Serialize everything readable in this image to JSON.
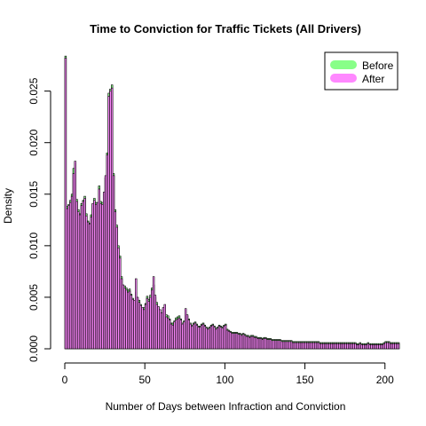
{
  "chart_data": {
    "type": "bar",
    "title": "Time to Conviction for Traffic Tickets (All Drivers)",
    "xlabel": "Number of Days between Infraction and Conviction",
    "ylabel": "Density",
    "xlim": [
      0,
      209
    ],
    "ylim": [
      0,
      0.0285
    ],
    "x_ticks": [
      0,
      50,
      100,
      150,
      200
    ],
    "y_ticks": [
      0.0,
      0.005,
      0.01,
      0.015,
      0.02,
      0.025
    ],
    "y_tick_labels": [
      "0.000",
      "0.005",
      "0.010",
      "0.015",
      "0.020",
      "0.025"
    ],
    "grid": false,
    "legend_position": "top-right",
    "colors": {
      "before": "#88ff88",
      "after": "#ff88ff",
      "outline": "#000000"
    },
    "series": [
      {
        "name": "Before",
        "color": "#88ff88",
        "x": [
          0,
          1,
          2,
          3,
          4,
          5,
          6,
          7,
          8,
          9,
          10,
          11,
          12,
          13,
          14,
          15,
          16,
          17,
          18,
          19,
          20,
          21,
          22,
          23,
          24,
          25,
          26,
          27,
          28,
          29,
          30,
          31,
          32,
          33,
          34,
          35,
          36,
          37,
          38,
          39,
          40,
          41,
          42,
          43,
          44,
          45,
          46,
          47,
          48,
          49,
          50,
          51,
          52,
          53,
          54,
          55,
          56,
          57,
          58,
          59,
          60,
          61,
          62,
          63,
          64,
          65,
          66,
          67,
          68,
          69,
          70,
          71,
          72,
          73,
          74,
          75,
          76,
          77,
          78,
          79,
          80,
          81,
          82,
          83,
          84,
          85,
          86,
          87,
          88,
          89,
          90,
          91,
          92,
          93,
          94,
          95,
          96,
          97,
          98,
          99,
          100,
          101,
          102,
          103,
          104,
          105,
          106,
          107,
          108,
          109,
          110,
          111,
          112,
          113,
          114,
          115,
          116,
          117,
          118,
          119,
          120,
          121,
          122,
          123,
          124,
          125,
          126,
          127,
          128,
          129,
          130,
          131,
          132,
          133,
          134,
          135,
          136,
          137,
          138,
          139,
          140,
          141,
          142,
          143,
          144,
          145,
          146,
          147,
          148,
          149,
          150,
          151,
          152,
          153,
          154,
          155,
          156,
          157,
          158,
          159,
          160,
          161,
          162,
          163,
          164,
          165,
          166,
          167,
          168,
          169,
          170,
          171,
          172,
          173,
          174,
          175,
          176,
          177,
          178,
          179,
          180,
          181,
          182,
          183,
          184,
          185,
          186,
          187,
          188,
          189,
          190,
          191,
          192,
          193,
          194,
          195,
          196,
          197,
          198,
          199,
          200,
          201,
          202,
          203,
          204,
          205,
          206,
          207,
          208
        ],
        "values": [
          0.0284,
          0.0138,
          0.014,
          0.0144,
          0.015,
          0.0175,
          0.018,
          0.0145,
          0.0135,
          0.0131,
          0.0141,
          0.0144,
          0.0148,
          0.0131,
          0.0124,
          0.0122,
          0.013,
          0.014,
          0.0146,
          0.0142,
          0.014,
          0.0158,
          0.0143,
          0.0142,
          0.015,
          0.0166,
          0.019,
          0.0248,
          0.0252,
          0.0256,
          0.017,
          0.0135,
          0.012,
          0.01,
          0.009,
          0.007,
          0.006,
          0.0061,
          0.0059,
          0.0057,
          0.0058,
          0.0053,
          0.0049,
          0.0045,
          0.0055,
          0.0048,
          0.0047,
          0.0043,
          0.0039,
          0.004,
          0.0044,
          0.0051,
          0.0048,
          0.0052,
          0.0059,
          0.0062,
          0.005,
          0.0045,
          0.004,
          0.0036,
          0.0034,
          0.0038,
          0.0041,
          0.0033,
          0.0032,
          0.0029,
          0.0025,
          0.0025,
          0.0027,
          0.003,
          0.0031,
          0.0032,
          0.0029,
          0.0025,
          0.0027,
          0.0031,
          0.0032,
          0.0029,
          0.0025,
          0.0023,
          0.0025,
          0.0026,
          0.0024,
          0.0022,
          0.0022,
          0.0024,
          0.0025,
          0.0023,
          0.0021,
          0.002,
          0.0021,
          0.0023,
          0.0024,
          0.0022,
          0.002,
          0.0021,
          0.0023,
          0.0022,
          0.0021,
          0.0023,
          0.0024,
          0.0019,
          0.0018,
          0.0017,
          0.0016,
          0.0016,
          0.0016,
          0.0016,
          0.0015,
          0.0015,
          0.0014,
          0.0015,
          0.0014,
          0.0013,
          0.0013,
          0.0012,
          0.0013,
          0.0013,
          0.0012,
          0.0012,
          0.0011,
          0.0011,
          0.0011,
          0.001,
          0.0011,
          0.0011,
          0.001,
          0.001,
          0.001,
          0.0009,
          0.0009,
          0.0009,
          0.0009,
          0.0009,
          0.0009,
          0.0008,
          0.0008,
          0.0008,
          0.0008,
          0.0008,
          0.0008,
          0.0008,
          0.0007,
          0.0007,
          0.0007,
          0.0007,
          0.0007,
          0.0007,
          0.0007,
          0.0007,
          0.0007,
          0.0007,
          0.0007,
          0.0007,
          0.0007,
          0.0007,
          0.0007,
          0.0007,
          0.0007,
          0.0006,
          0.0006,
          0.0006,
          0.0006,
          0.0006,
          0.0006,
          0.0006,
          0.0006,
          0.0006,
          0.0006,
          0.0006,
          0.0006,
          0.0006,
          0.0006,
          0.0006,
          0.0006,
          0.0006,
          0.0006,
          0.0006,
          0.0006,
          0.0006,
          0.0006,
          0.0006,
          0.0005,
          0.0005,
          0.0006,
          0.0005,
          0.0005,
          0.0005,
          0.0005,
          0.0006,
          0.0005,
          0.0005,
          0.0005,
          0.0005,
          0.0005,
          0.0005,
          0.0005,
          0.0005,
          0.0005,
          0.0006,
          0.0007,
          0.0007,
          0.0007,
          0.0006,
          0.0006,
          0.0006,
          0.0006,
          0.0006,
          0.0006
        ]
      },
      {
        "name": "After",
        "color": "#ff88ff",
        "x": [
          0,
          1,
          2,
          3,
          4,
          5,
          6,
          7,
          8,
          9,
          10,
          11,
          12,
          13,
          14,
          15,
          16,
          17,
          18,
          19,
          20,
          21,
          22,
          23,
          24,
          25,
          26,
          27,
          28,
          29,
          30,
          31,
          32,
          33,
          34,
          35,
          36,
          37,
          38,
          39,
          40,
          41,
          42,
          43,
          44,
          45,
          46,
          47,
          48,
          49,
          50,
          51,
          52,
          53,
          54,
          55,
          56,
          57,
          58,
          59,
          60,
          61,
          62,
          63,
          64,
          65,
          66,
          67,
          68,
          69,
          70,
          71,
          72,
          73,
          74,
          75,
          76,
          77,
          78,
          79,
          80,
          81,
          82,
          83,
          84,
          85,
          86,
          87,
          88,
          89,
          90,
          91,
          92,
          93,
          94,
          95,
          96,
          97,
          98,
          99,
          100,
          101,
          102,
          103,
          104,
          105,
          106,
          107,
          108,
          109,
          110,
          111,
          112,
          113,
          114,
          115,
          116,
          117,
          118,
          119,
          120,
          121,
          122,
          123,
          124,
          125,
          126,
          127,
          128,
          129,
          130,
          131,
          132,
          133,
          134,
          135,
          136,
          137,
          138,
          139,
          140,
          141,
          142,
          143,
          144,
          145,
          146,
          147,
          148,
          149,
          150,
          151,
          152,
          153,
          154,
          155,
          156,
          157,
          158,
          159,
          160,
          161,
          162,
          163,
          164,
          165,
          166,
          167,
          168,
          169,
          170,
          171,
          172,
          173,
          174,
          175,
          176,
          177,
          178,
          179,
          180,
          181,
          182,
          183,
          184,
          185,
          186,
          187,
          188,
          189,
          190,
          191,
          192,
          193,
          194,
          195,
          196,
          197,
          198,
          199,
          200,
          201,
          202,
          203,
          204,
          205,
          206,
          207,
          208
        ],
        "values": [
          0.0282,
          0.0136,
          0.0139,
          0.0142,
          0.0148,
          0.017,
          0.0182,
          0.0143,
          0.0133,
          0.013,
          0.0139,
          0.0143,
          0.0146,
          0.0129,
          0.0123,
          0.0121,
          0.0128,
          0.0141,
          0.0144,
          0.014,
          0.0142,
          0.0155,
          0.0141,
          0.014,
          0.0152,
          0.0168,
          0.0188,
          0.0245,
          0.025,
          0.0253,
          0.0168,
          0.0133,
          0.0118,
          0.0098,
          0.0088,
          0.0068,
          0.0062,
          0.0059,
          0.0057,
          0.0055,
          0.0056,
          0.0052,
          0.0048,
          0.0047,
          0.0068,
          0.005,
          0.0045,
          0.0042,
          0.004,
          0.0038,
          0.0043,
          0.0049,
          0.0046,
          0.005,
          0.0057,
          0.007,
          0.0052,
          0.0043,
          0.0041,
          0.0038,
          0.0035,
          0.004,
          0.0043,
          0.0031,
          0.003,
          0.0028,
          0.0024,
          0.0023,
          0.0026,
          0.0028,
          0.0029,
          0.003,
          0.0028,
          0.0024,
          0.0026,
          0.0039,
          0.0033,
          0.0028,
          0.0024,
          0.0022,
          0.0024,
          0.0025,
          0.0023,
          0.0021,
          0.0021,
          0.0023,
          0.0024,
          0.0022,
          0.002,
          0.0019,
          0.002,
          0.0022,
          0.0023,
          0.0021,
          0.0019,
          0.002,
          0.0022,
          0.0021,
          0.002,
          0.0022,
          0.0023,
          0.0018,
          0.0017,
          0.0016,
          0.0015,
          0.0015,
          0.0015,
          0.0015,
          0.0014,
          0.0014,
          0.0013,
          0.0014,
          0.0013,
          0.0012,
          0.0012,
          0.0011,
          0.0012,
          0.0012,
          0.0011,
          0.0011,
          0.001,
          0.001,
          0.001,
          0.0009,
          0.001,
          0.001,
          0.0009,
          0.0009,
          0.0009,
          0.0008,
          0.0008,
          0.0008,
          0.0008,
          0.0008,
          0.0008,
          0.0007,
          0.0007,
          0.0007,
          0.0007,
          0.0007,
          0.0007,
          0.0007,
          0.0006,
          0.0006,
          0.0006,
          0.0006,
          0.0006,
          0.0006,
          0.0006,
          0.0006,
          0.0006,
          0.0006,
          0.0006,
          0.0006,
          0.0006,
          0.0006,
          0.0006,
          0.0006,
          0.0006,
          0.0005,
          0.0005,
          0.0005,
          0.0005,
          0.0005,
          0.0005,
          0.0005,
          0.0005,
          0.0005,
          0.0005,
          0.0005,
          0.0005,
          0.0005,
          0.0005,
          0.0005,
          0.0005,
          0.0005,
          0.0005,
          0.0005,
          0.0005,
          0.0005,
          0.0005,
          0.0005,
          0.0004,
          0.0004,
          0.0005,
          0.0004,
          0.0004,
          0.0004,
          0.0004,
          0.0005,
          0.0004,
          0.0004,
          0.0004,
          0.0004,
          0.0004,
          0.0004,
          0.0004,
          0.0004,
          0.0004,
          0.0005,
          0.0006,
          0.0006,
          0.0006,
          0.0005,
          0.0005,
          0.0005,
          0.0005,
          0.0005,
          0.0005
        ]
      }
    ]
  }
}
